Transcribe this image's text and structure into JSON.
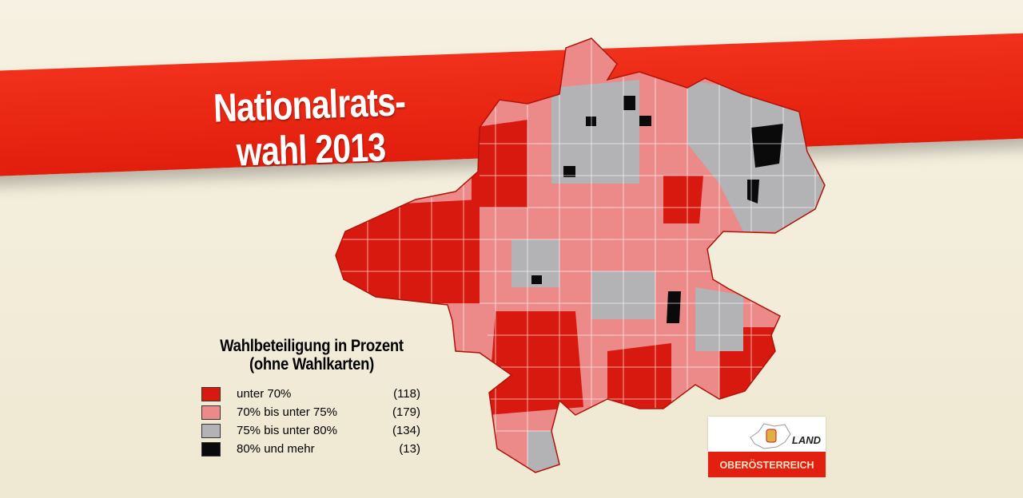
{
  "title": {
    "line1": "Nationalrats-",
    "line2": "wahl 2013"
  },
  "legend": {
    "title_line1": "Wahlbeteiligung in Prozent",
    "title_line2": "(ohne Wahlkarten)",
    "items": [
      {
        "label": "unter 70%",
        "count": "(118)",
        "color": "#d7190f"
      },
      {
        "label": "70% bis unter 75%",
        "count": "(179)",
        "color": "#ec8a89"
      },
      {
        "label": "75% bis unter 80%",
        "count": "(134)",
        "color": "#b3b2b4"
      },
      {
        "label": "80% und mehr",
        "count": "(13)",
        "color": "#0a0a0a"
      }
    ]
  },
  "logo": {
    "line1": "LAND",
    "line2": "OBERÖSTERREICH"
  },
  "colors": {
    "banner": "#e8250f",
    "background": "#f4efdf"
  }
}
